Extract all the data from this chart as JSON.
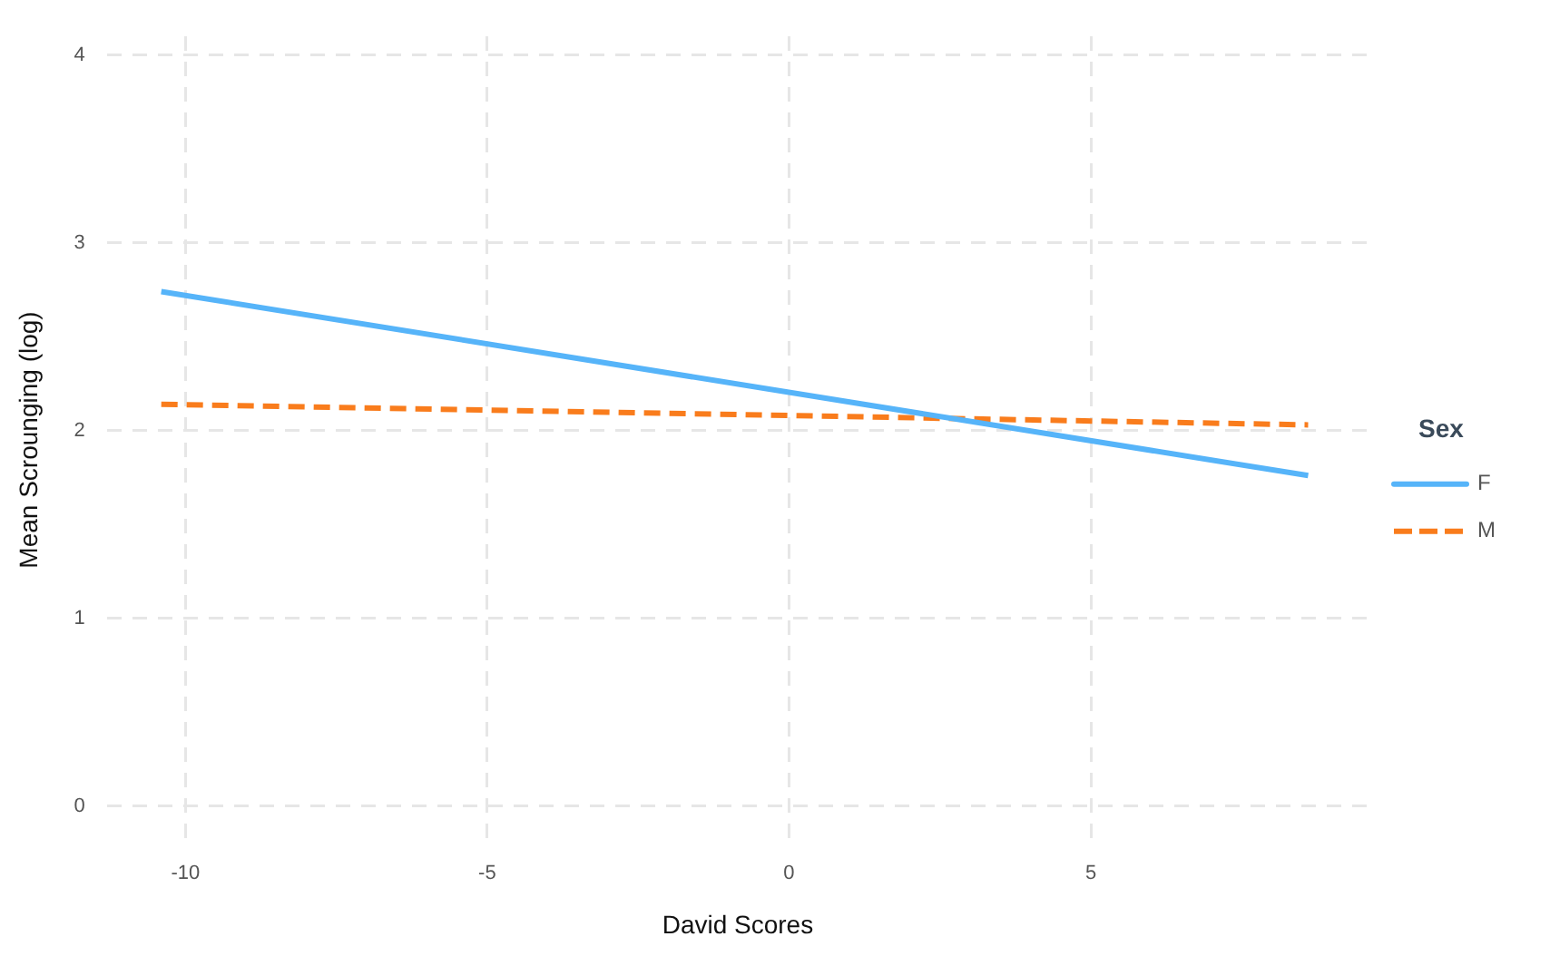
{
  "chart_data": {
    "type": "line",
    "xlabel": "David Scores",
    "ylabel": "Mean Scrounging (log)",
    "legend_title": "Sex",
    "legend": "right",
    "grid": true,
    "x": [
      -10.4,
      8.6
    ],
    "xlim": [
      -11.3,
      9.6
    ],
    "xticks": [
      -10,
      -5,
      0,
      5
    ],
    "ylim": [
      -0.2,
      4.1
    ],
    "yticks": [
      0,
      1,
      2,
      3,
      4
    ],
    "series": [
      {
        "name": "F",
        "color": "#56b4f9",
        "values": [
          2.74,
          1.76
        ],
        "line_style": "solid"
      },
      {
        "name": "M",
        "color": "#f97c1c",
        "values": [
          2.14,
          2.03
        ],
        "line_style": "dashed"
      }
    ]
  }
}
